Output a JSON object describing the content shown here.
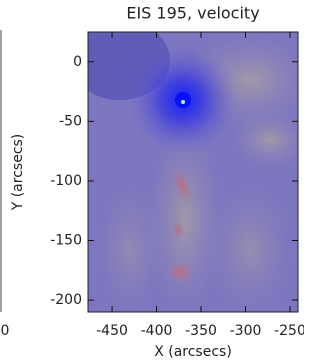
{
  "chart_data": {
    "type": "image",
    "title": "EIS 195, velocity",
    "x_label": "X (arcsecs)",
    "y_label": "Y (arcsecs)",
    "xlim": [
      -477,
      -241
    ],
    "ylim": [
      -210,
      25
    ],
    "xticks": [
      -450,
      -400,
      -350,
      -300,
      -250
    ],
    "yticks": [
      0,
      -50,
      -100,
      -150,
      -200
    ],
    "left_edge_label": "0"
  }
}
